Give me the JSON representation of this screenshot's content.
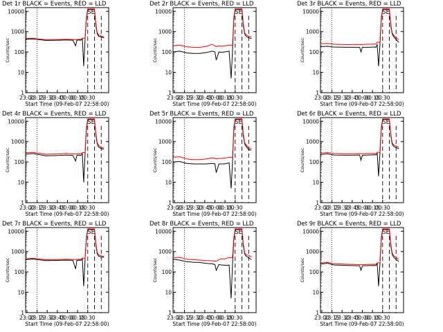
{
  "figure": {
    "start_label": "Start Time (09-Feb-07 22:58:00)",
    "ylabel": "Counts/sec",
    "colors": {
      "events": "#000000",
      "lld": "#ff0000"
    }
  },
  "chart_data": [
    {
      "type": "line",
      "title": "Det 1r BLACK = Events, RED = LLD",
      "annotation": "SE",
      "xlabel": "Start Time (09-Feb-07 22:58:00)",
      "ylabel": "Counts/sec",
      "xticks": [
        "23:00",
        "23:15",
        "23:30",
        "23:45",
        "00:00",
        "00:15",
        "00:30"
      ],
      "yticks": [
        "1",
        "10",
        "100",
        "1000",
        "10000"
      ],
      "ylog": true,
      "x_minutes": [
        0,
        10,
        30,
        50,
        60,
        70,
        74,
        76,
        80,
        82,
        84,
        86,
        88,
        90,
        92,
        96,
        100,
        102,
        103,
        104,
        106,
        108,
        112,
        116
      ],
      "series": [
        {
          "name": "Events",
          "values": [
            420,
            440,
            370,
            380,
            390,
            380,
            200,
            380,
            390,
            380,
            450,
            20,
            420,
            4000,
            12000,
            12000,
            12000,
            12000,
            5000,
            2000,
            800,
            600,
            550,
            500
          ]
        },
        {
          "name": "LLD",
          "values": [
            450,
            470,
            400,
            410,
            420,
            410,
            400,
            410,
            420,
            410,
            480,
            480,
            480,
            5000,
            13000,
            13000,
            13000,
            13000,
            6000,
            2500,
            900,
            700,
            600,
            550
          ]
        }
      ]
    },
    {
      "type": "line",
      "title": "Det 2r BLACK = Events, RED = LLD",
      "annotation": "SE",
      "xlabel": "Start Time (09-Feb-07 22:58:00)",
      "ylabel": "Counts/sec",
      "xticks": [
        "23:00",
        "23:15",
        "23:30",
        "23:45",
        "00:00",
        "00:15",
        "00:30"
      ],
      "yticks": [
        "1",
        "10",
        "100",
        "1000",
        "10000"
      ],
      "ylog": true,
      "x_minutes": [
        0,
        10,
        20,
        30,
        40,
        50,
        58,
        62,
        64,
        68,
        72,
        76,
        80,
        83,
        86,
        88,
        90,
        92,
        96,
        100,
        102,
        103,
        104,
        106,
        108,
        112,
        116
      ],
      "series": [
        {
          "name": "Events",
          "values": [
            100,
            110,
            90,
            85,
            85,
            95,
            110,
            100,
            40,
            100,
            95,
            100,
            105,
            110,
            5,
            110,
            4000,
            12000,
            12000,
            12000,
            12000,
            5000,
            2000,
            800,
            600,
            500,
            450
          ]
        },
        {
          "name": "LLD",
          "values": [
            200,
            220,
            180,
            170,
            170,
            190,
            240,
            200,
            180,
            200,
            190,
            200,
            210,
            220,
            210,
            220,
            5000,
            13000,
            13000,
            13000,
            13000,
            6000,
            2500,
            900,
            700,
            600,
            550
          ]
        }
      ]
    },
    {
      "type": "line",
      "title": "Det 3r BLACK = Events, RED = LLD",
      "annotation": "SE",
      "xlabel": "Start Time (09-Feb-07 22:58:00)",
      "ylabel": "Counts/sec",
      "xticks": [
        "23:00",
        "23:15",
        "23:30",
        "23:45",
        "00:00",
        "00:15",
        "00:30"
      ],
      "yticks": [
        "1",
        "10",
        "100",
        "1000",
        "10000"
      ],
      "ylog": true,
      "x_minutes": [
        0,
        10,
        20,
        40,
        58,
        60,
        62,
        70,
        80,
        82,
        84,
        86,
        88,
        90,
        92,
        96,
        100,
        102,
        103,
        104,
        106,
        108,
        112,
        116
      ],
      "series": [
        {
          "name": "Events",
          "values": [
            180,
            190,
            175,
            170,
            170,
            100,
            170,
            170,
            175,
            170,
            230,
            20,
            220,
            4000,
            12000,
            12000,
            12000,
            12000,
            5000,
            2000,
            800,
            600,
            400,
            300
          ]
        },
        {
          "name": "LLD",
          "values": [
            250,
            260,
            240,
            230,
            235,
            230,
            235,
            240,
            245,
            240,
            310,
            300,
            300,
            5000,
            13000,
            13000,
            13000,
            13000,
            6000,
            2500,
            900,
            700,
            500,
            400
          ]
        }
      ]
    },
    {
      "type": "line",
      "title": "Det 4r BLACK = Events, RED = LLD",
      "annotation": "SE",
      "xlabel": "Start Time (09-Feb-07 22:58:00)",
      "ylabel": "Counts/sec",
      "xticks": [
        "23:00",
        "23:15",
        "23:30",
        "23:45",
        "00:00",
        "00:15",
        "00:30"
      ],
      "yticks": [
        "1",
        "10",
        "100",
        "1000",
        "10000"
      ],
      "ylog": true,
      "x_minutes": [
        0,
        10,
        30,
        50,
        60,
        70,
        74,
        76,
        80,
        82,
        84,
        86,
        88,
        90,
        92,
        96,
        100,
        102,
        103,
        104,
        106,
        108,
        112,
        116
      ],
      "series": [
        {
          "name": "Events",
          "values": [
            240,
            260,
            200,
            210,
            220,
            210,
            110,
            210,
            215,
            210,
            250,
            10,
            240,
            4000,
            12000,
            12000,
            12000,
            12000,
            5000,
            2000,
            800,
            550,
            450,
            420
          ]
        },
        {
          "name": "LLD",
          "values": [
            280,
            300,
            240,
            250,
            260,
            250,
            245,
            250,
            255,
            250,
            290,
            290,
            280,
            5000,
            13000,
            13000,
            13000,
            13000,
            6000,
            2500,
            900,
            650,
            520,
            480
          ]
        }
      ]
    },
    {
      "type": "line",
      "title": "Det 5r BLACK = Events, RED = LLD",
      "annotation": "SE",
      "xlabel": "Start Time (09-Feb-07 22:58:00)",
      "ylabel": "Counts/sec",
      "xticks": [
        "23:00",
        "23:15",
        "23:30",
        "23:45",
        "00:00",
        "00:15",
        "00:30"
      ],
      "yticks": [
        "1",
        "10",
        "100",
        "1000",
        "10000"
      ],
      "ylog": true,
      "x_minutes": [
        0,
        10,
        20,
        30,
        40,
        50,
        58,
        62,
        64,
        68,
        72,
        76,
        80,
        83,
        86,
        88,
        90,
        92,
        96,
        100,
        102,
        103,
        104,
        106,
        108,
        112,
        116
      ],
      "series": [
        {
          "name": "Events",
          "values": [
            100,
            105,
            85,
            80,
            80,
            80,
            85,
            80,
            30,
            80,
            80,
            80,
            85,
            90,
            5,
            90,
            4000,
            12000,
            12000,
            12000,
            12000,
            5000,
            2000,
            800,
            600,
            400,
            380
          ]
        },
        {
          "name": "LLD",
          "values": [
            170,
            180,
            140,
            130,
            130,
            140,
            160,
            150,
            140,
            150,
            150,
            155,
            160,
            170,
            165,
            170,
            5000,
            13000,
            13000,
            13000,
            13000,
            6000,
            2500,
            900,
            700,
            500,
            450
          ]
        }
      ]
    },
    {
      "type": "line",
      "title": "Det 6r BLACK = Events, RED = LLD",
      "annotation": "SE",
      "xlabel": "Start Time (09-Feb-07 22:58:00)",
      "ylabel": "Counts/sec",
      "xticks": [
        "23:00",
        "23:15",
        "23:30",
        "23:45",
        "00:00",
        "00:15",
        "00:30"
      ],
      "yticks": [
        "1",
        "10",
        "100",
        "1000",
        "10000"
      ],
      "ylog": true,
      "x_minutes": [
        0,
        10,
        20,
        40,
        58,
        60,
        62,
        70,
        80,
        82,
        84,
        86,
        88,
        90,
        92,
        96,
        100,
        102,
        103,
        104,
        106,
        108,
        112,
        116
      ],
      "series": [
        {
          "name": "Events",
          "values": [
            230,
            250,
            220,
            215,
            220,
            120,
            215,
            220,
            225,
            220,
            260,
            20,
            250,
            4000,
            12000,
            12000,
            12000,
            12000,
            5000,
            2000,
            800,
            600,
            500,
            450
          ]
        },
        {
          "name": "LLD",
          "values": [
            270,
            290,
            260,
            255,
            260,
            255,
            255,
            260,
            265,
            260,
            300,
            300,
            290,
            5000,
            13000,
            13000,
            13000,
            13000,
            6000,
            2500,
            900,
            700,
            600,
            520
          ]
        }
      ]
    },
    {
      "type": "line",
      "title": "Det 7r BLACK = Events, RED = LLD",
      "annotation": "SE",
      "xlabel": "Start Time (09-Feb-07 22:58:00)",
      "ylabel": "Counts/sec",
      "xticks": [
        "23:00",
        "23:15",
        "23:30",
        "23:45",
        "00:00",
        "00:15",
        "00:30"
      ],
      "yticks": [
        "1",
        "10",
        "100",
        "1000",
        "10000"
      ],
      "ylog": true,
      "x_minutes": [
        0,
        10,
        30,
        50,
        60,
        70,
        74,
        76,
        80,
        82,
        84,
        86,
        88,
        90,
        92,
        96,
        100,
        102,
        103,
        104,
        106,
        108,
        112,
        116
      ],
      "series": [
        {
          "name": "Events",
          "values": [
            400,
            430,
            360,
            370,
            380,
            370,
            140,
            370,
            380,
            370,
            440,
            20,
            410,
            4000,
            12000,
            12000,
            12000,
            12000,
            5000,
            2000,
            800,
            600,
            550,
            520
          ]
        },
        {
          "name": "LLD",
          "values": [
            440,
            470,
            400,
            410,
            420,
            410,
            405,
            410,
            420,
            410,
            480,
            480,
            450,
            5000,
            13000,
            13000,
            13000,
            13000,
            6000,
            2500,
            900,
            700,
            620,
            580
          ]
        }
      ]
    },
    {
      "type": "line",
      "title": "Det 8r BLACK = Events, RED = LLD",
      "annotation": "SE",
      "xlabel": "Start Time (09-Feb-07 22:58:00)",
      "ylabel": "Counts/sec",
      "xticks": [
        "23:00",
        "23:15",
        "23:30",
        "23:45",
        "00:00",
        "00:15",
        "00:30"
      ],
      "yticks": [
        "1",
        "10",
        "100",
        "1000",
        "10000"
      ],
      "ylog": true,
      "x_minutes": [
        0,
        10,
        20,
        30,
        40,
        50,
        58,
        62,
        64,
        68,
        72,
        76,
        80,
        83,
        86,
        88,
        90,
        92,
        96,
        100,
        102,
        103,
        104,
        106,
        108,
        112,
        116
      ],
      "series": [
        {
          "name": "Events",
          "values": [
            420,
            380,
            320,
            300,
            290,
            260,
            250,
            230,
            120,
            230,
            220,
            215,
            210,
            220,
            5,
            220,
            4000,
            12000,
            12000,
            12000,
            12000,
            5000,
            2000,
            800,
            600,
            500,
            400
          ]
        },
        {
          "name": "LLD",
          "values": [
            500,
            520,
            420,
            400,
            380,
            360,
            350,
            340,
            330,
            400,
            450,
            420,
            480,
            520,
            500,
            510,
            5000,
            13000,
            13000,
            13000,
            13000,
            6000,
            2500,
            900,
            700,
            650,
            550
          ]
        }
      ]
    },
    {
      "type": "line",
      "title": "Det 9r BLACK = Events, RED = LLD",
      "annotation": "SE",
      "xlabel": "Start Time (09-Feb-07 22:58:00)",
      "ylabel": "Counts/sec",
      "xticks": [
        "23:00",
        "23:15",
        "23:30",
        "23:45",
        "00:00",
        "00:15",
        "00:30"
      ],
      "yticks": [
        "1",
        "10",
        "100",
        "1000",
        "10000"
      ],
      "ylog": true,
      "x_minutes": [
        0,
        10,
        20,
        40,
        58,
        60,
        62,
        70,
        80,
        82,
        84,
        86,
        88,
        90,
        92,
        96,
        100,
        102,
        103,
        104,
        106,
        108,
        112,
        116
      ],
      "series": [
        {
          "name": "Events",
          "values": [
            240,
            270,
            220,
            210,
            200,
            120,
            200,
            205,
            210,
            205,
            250,
            20,
            240,
            4000,
            12000,
            12000,
            12000,
            12000,
            5000,
            2000,
            800,
            550,
            400,
            330
          ]
        },
        {
          "name": "LLD",
          "values": [
            270,
            300,
            250,
            240,
            230,
            225,
            230,
            235,
            240,
            235,
            280,
            280,
            270,
            5000,
            13000,
            13000,
            13000,
            13000,
            6000,
            2500,
            900,
            650,
            500,
            420
          ]
        }
      ]
    }
  ]
}
